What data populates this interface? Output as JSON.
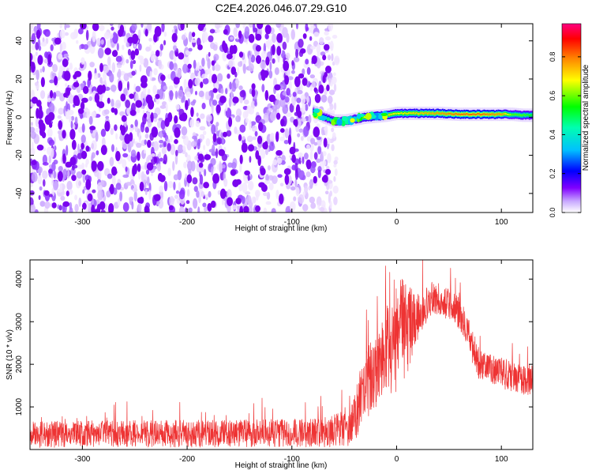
{
  "title": "C2E4.2026.046.07.29.G10",
  "chart_data": [
    {
      "type": "heatmap",
      "xlabel": "Height of straight line (km)",
      "ylabel": "Frequency (Hz)",
      "xlim": [
        -350,
        130
      ],
      "ylim": [
        -50,
        49
      ],
      "xticks": [
        "-300",
        "-200",
        "-100",
        "0",
        "100"
      ],
      "xtick_values": [
        -300,
        -200,
        -100,
        0,
        100
      ],
      "yticks": [
        "-40",
        "-20",
        "0",
        "20",
        "40"
      ],
      "ytick_values": [
        -40,
        -20,
        0,
        20,
        40
      ],
      "grid": false,
      "noise_region_x": [
        -350,
        -65
      ],
      "signal": {
        "x": [
          -80,
          -70,
          -60,
          -50,
          -40,
          -30,
          -20,
          -10,
          0,
          20,
          40,
          60,
          80,
          100,
          110,
          120,
          130
        ],
        "freq": [
          3,
          0,
          -2,
          -2,
          -1,
          0,
          0.5,
          1,
          2,
          2,
          2,
          1.5,
          1.5,
          1.5,
          1.5,
          1,
          1
        ],
        "amplitude": [
          0.3,
          0.4,
          0.5,
          0.55,
          0.6,
          0.7,
          0.75,
          0.75,
          0.7,
          0.75,
          0.8,
          0.85,
          0.85,
          0.8,
          0.6,
          0.6,
          0.55
        ]
      },
      "colorbar": {
        "label": "Normalized spectral amplitude",
        "ticks": [
          "0.0",
          "0.2",
          "0.4",
          "0.6",
          "0.8"
        ],
        "tick_values": [
          0,
          0.2,
          0.4,
          0.6,
          0.8
        ],
        "range": [
          0,
          0.97
        ]
      }
    },
    {
      "type": "line",
      "xlabel": "Height of straight line (km)",
      "ylabel": "SNR (10 * v/v)",
      "xlim": [
        -350,
        130
      ],
      "ylim": [
        0,
        4450
      ],
      "xticks": [
        "-300",
        "-200",
        "-100",
        "0",
        "100"
      ],
      "xtick_values": [
        -300,
        -200,
        -100,
        0,
        100
      ],
      "yticks": [
        "1000",
        "2000",
        "3000",
        "4000"
      ],
      "ytick_values": [
        1000,
        2000,
        3000,
        4000
      ],
      "grid": false,
      "series": [
        {
          "color": "#ee3333",
          "x": [
            -350,
            -300,
            -250,
            -200,
            -150,
            -100,
            -70,
            -55,
            -45,
            -40,
            -35,
            -30,
            -25,
            -20,
            -15,
            -10,
            -5,
            0,
            5,
            10,
            15,
            20,
            25,
            30,
            35,
            40,
            45,
            50,
            55,
            60,
            65,
            70,
            75,
            80,
            85,
            90,
            95,
            100,
            105,
            110,
            115,
            120,
            125,
            130
          ],
          "y": [
            350,
            360,
            370,
            370,
            380,
            390,
            400,
            450,
            550,
            750,
            1150,
            1450,
            1700,
            1850,
            2050,
            2300,
            2400,
            2550,
            2750,
            2850,
            2950,
            3100,
            3250,
            3450,
            3550,
            3550,
            3450,
            3400,
            3300,
            3200,
            2950,
            2700,
            2100,
            2000,
            1950,
            1900,
            1850,
            1800,
            1750,
            1700,
            1700,
            1650,
            1650,
            1650
          ],
          "spread": [
            190,
            200,
            200,
            200,
            200,
            210,
            220,
            250,
            300,
            350,
            450,
            500,
            550,
            550,
            600,
            650,
            700,
            800,
            800,
            700,
            500,
            350,
            300,
            280,
            250,
            250,
            240,
            230,
            230,
            230,
            240,
            250,
            250,
            230,
            220,
            220,
            220,
            220,
            230,
            230,
            230,
            230,
            230,
            230
          ]
        }
      ]
    }
  ]
}
